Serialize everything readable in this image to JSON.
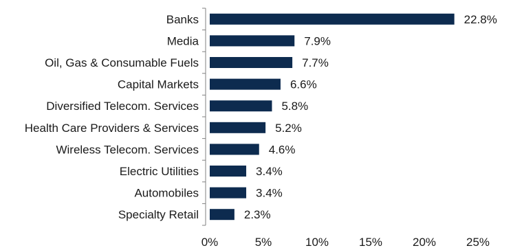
{
  "chart_data": {
    "type": "bar",
    "orientation": "horizontal",
    "categories": [
      "Banks",
      "Media",
      "Oil, Gas & Consumable Fuels",
      "Capital Markets",
      "Diversified Telecom. Services",
      "Health Care Providers & Services",
      "Wireless Telecom. Services",
      "Electric Utilities",
      "Automobiles",
      "Specialty Retail"
    ],
    "values": [
      22.8,
      7.9,
      7.7,
      6.6,
      5.8,
      5.2,
      4.6,
      3.4,
      3.4,
      2.3
    ],
    "value_labels": [
      "22.8%",
      "7.9%",
      "7.7%",
      "6.6%",
      "5.8%",
      "5.2%",
      "4.6%",
      "3.4%",
      "3.4%",
      "2.3%"
    ],
    "xlim": [
      0,
      25
    ],
    "xticks": [
      0,
      5,
      10,
      15,
      20,
      25
    ],
    "xtick_labels": [
      "0%",
      "5%",
      "10%",
      "15%",
      "20%",
      "25%"
    ],
    "bar_color": "#0d2b4f",
    "grid": false,
    "title": "",
    "xlabel": "",
    "ylabel": ""
  }
}
